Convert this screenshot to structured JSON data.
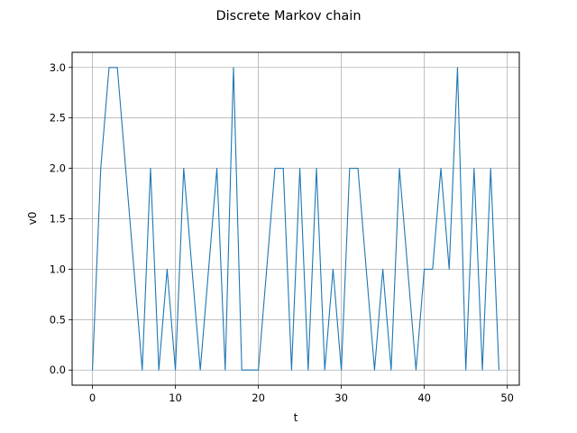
{
  "chart_data": {
    "type": "line",
    "title": "Discrete Markov chain",
    "xlabel": "t",
    "ylabel": "v0",
    "xlim": [
      -2.45,
      51.45
    ],
    "ylim": [
      -0.15,
      3.15
    ],
    "xticks": [
      0,
      10,
      20,
      30,
      40,
      50
    ],
    "xtick_labels": [
      "0",
      "10",
      "20",
      "30",
      "40",
      "50"
    ],
    "yticks": [
      0.0,
      0.5,
      1.0,
      1.5,
      2.0,
      2.5,
      3.0
    ],
    "ytick_labels": [
      "0.0",
      "0.5",
      "1.0",
      "1.5",
      "2.0",
      "2.5",
      "3.0"
    ],
    "grid": true,
    "line_color": "#1f77b4",
    "series": [
      {
        "x": [
          0,
          1,
          2,
          3,
          4,
          5,
          6,
          7,
          8,
          9,
          10,
          11,
          12,
          13,
          14,
          15,
          16,
          17,
          18,
          19,
          20,
          21,
          22,
          23,
          24,
          25,
          26,
          27,
          28,
          29,
          30,
          31,
          32,
          33,
          34,
          35,
          36,
          37,
          38,
          39,
          40,
          41,
          42,
          43,
          44,
          45,
          46,
          47,
          48,
          49
        ],
        "values": [
          0,
          2,
          3,
          3,
          2,
          1,
          0,
          2,
          0,
          1,
          0,
          2,
          1,
          0,
          1,
          2,
          0,
          3,
          0,
          0,
          0,
          1,
          2,
          2,
          0,
          2,
          0,
          2,
          0,
          1,
          0,
          2,
          2,
          1,
          0,
          1,
          0,
          2,
          1,
          0,
          1,
          1,
          2,
          1,
          3,
          0,
          2,
          0,
          2,
          0
        ]
      }
    ]
  }
}
